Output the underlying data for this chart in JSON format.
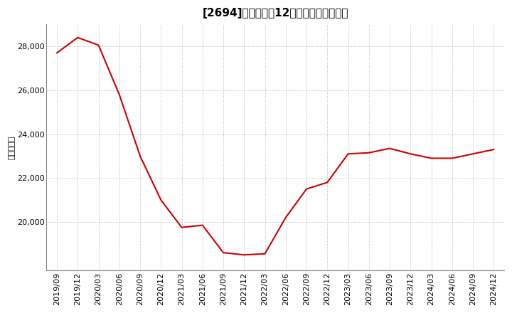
{
  "title": "[2694]　売上高の12か月移動合計の推移",
  "ylabel": "（百万円）",
  "line_color": "#cc0000",
  "background_color": "#ffffff",
  "plot_bg_color": "#ffffff",
  "grid_color": "#999999",
  "dates": [
    "2019/09",
    "2019/12",
    "2020/03",
    "2020/06",
    "2020/09",
    "2020/12",
    "2021/03",
    "2021/06",
    "2021/09",
    "2021/12",
    "2022/03",
    "2022/06",
    "2022/09",
    "2022/12",
    "2023/03",
    "2023/06",
    "2023/09",
    "2023/12",
    "2024/03",
    "2024/06",
    "2024/09",
    "2024/12"
  ],
  "values": [
    27700,
    28400,
    28050,
    25800,
    23000,
    21000,
    19750,
    19850,
    18600,
    18500,
    18550,
    20200,
    21500,
    21800,
    23100,
    23150,
    23350,
    23100,
    22900,
    22900,
    23100,
    23300
  ],
  "yticks": [
    20000,
    22000,
    24000,
    26000,
    28000
  ],
  "ylim": [
    17800,
    29000
  ],
  "title_fontsize": 11,
  "axis_fontsize": 8,
  "ylabel_fontsize": 8
}
